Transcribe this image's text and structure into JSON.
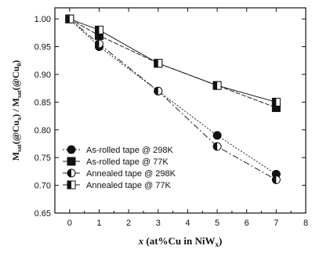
{
  "chart_data": {
    "type": "line",
    "xlabel": {
      "main": "x",
      "rest": " (at%Cu in NiW",
      "sub": "x",
      "close": ")"
    },
    "ylabel": {
      "a": "M",
      "a_sub": "sat",
      "b": "(@Cu",
      "b_sub": "x",
      "c": ") / M",
      "c_sub": "sat",
      "d": "(@Cu",
      "d_sub": "0",
      "e": ")"
    },
    "xlim": [
      -0.5,
      8
    ],
    "ylim": [
      0.65,
      1.02
    ],
    "xticks": [
      0,
      1,
      2,
      3,
      4,
      5,
      6,
      7,
      8
    ],
    "yticks": [
      0.65,
      0.7,
      0.75,
      0.8,
      0.85,
      0.9,
      0.95,
      1.0
    ],
    "ytick_labels": [
      "0.65",
      "0.70",
      "0.75",
      "0.80",
      "0.85",
      "0.90",
      "0.95",
      "1.00"
    ],
    "grid": false,
    "legend_position": "lower-left",
    "series": [
      {
        "name": "As-rolled tape @ 298K",
        "marker": "circle-filled",
        "dash": "2,2",
        "x": [
          0,
          1,
          3,
          5,
          7
        ],
        "values": [
          1.0,
          0.95,
          0.87,
          0.79,
          0.72
        ]
      },
      {
        "name": "As-rolled tape @ 77K",
        "marker": "square-filled",
        "dash": "6,2",
        "x": [
          0,
          1,
          3,
          5,
          7
        ],
        "values": [
          1.0,
          0.97,
          0.92,
          0.88,
          0.84
        ]
      },
      {
        "name": "Annealed tape @ 298K",
        "marker": "circle-half",
        "dash": "8,3,2,3",
        "x": [
          0,
          1,
          3,
          5,
          7
        ],
        "values": [
          1.0,
          0.955,
          0.87,
          0.77,
          0.71
        ]
      },
      {
        "name": "Annealed tape @ 77K",
        "marker": "square-half",
        "dash": "",
        "x": [
          0,
          1,
          3,
          5,
          7
        ],
        "values": [
          1.0,
          0.98,
          0.92,
          0.88,
          0.85
        ]
      }
    ]
  }
}
